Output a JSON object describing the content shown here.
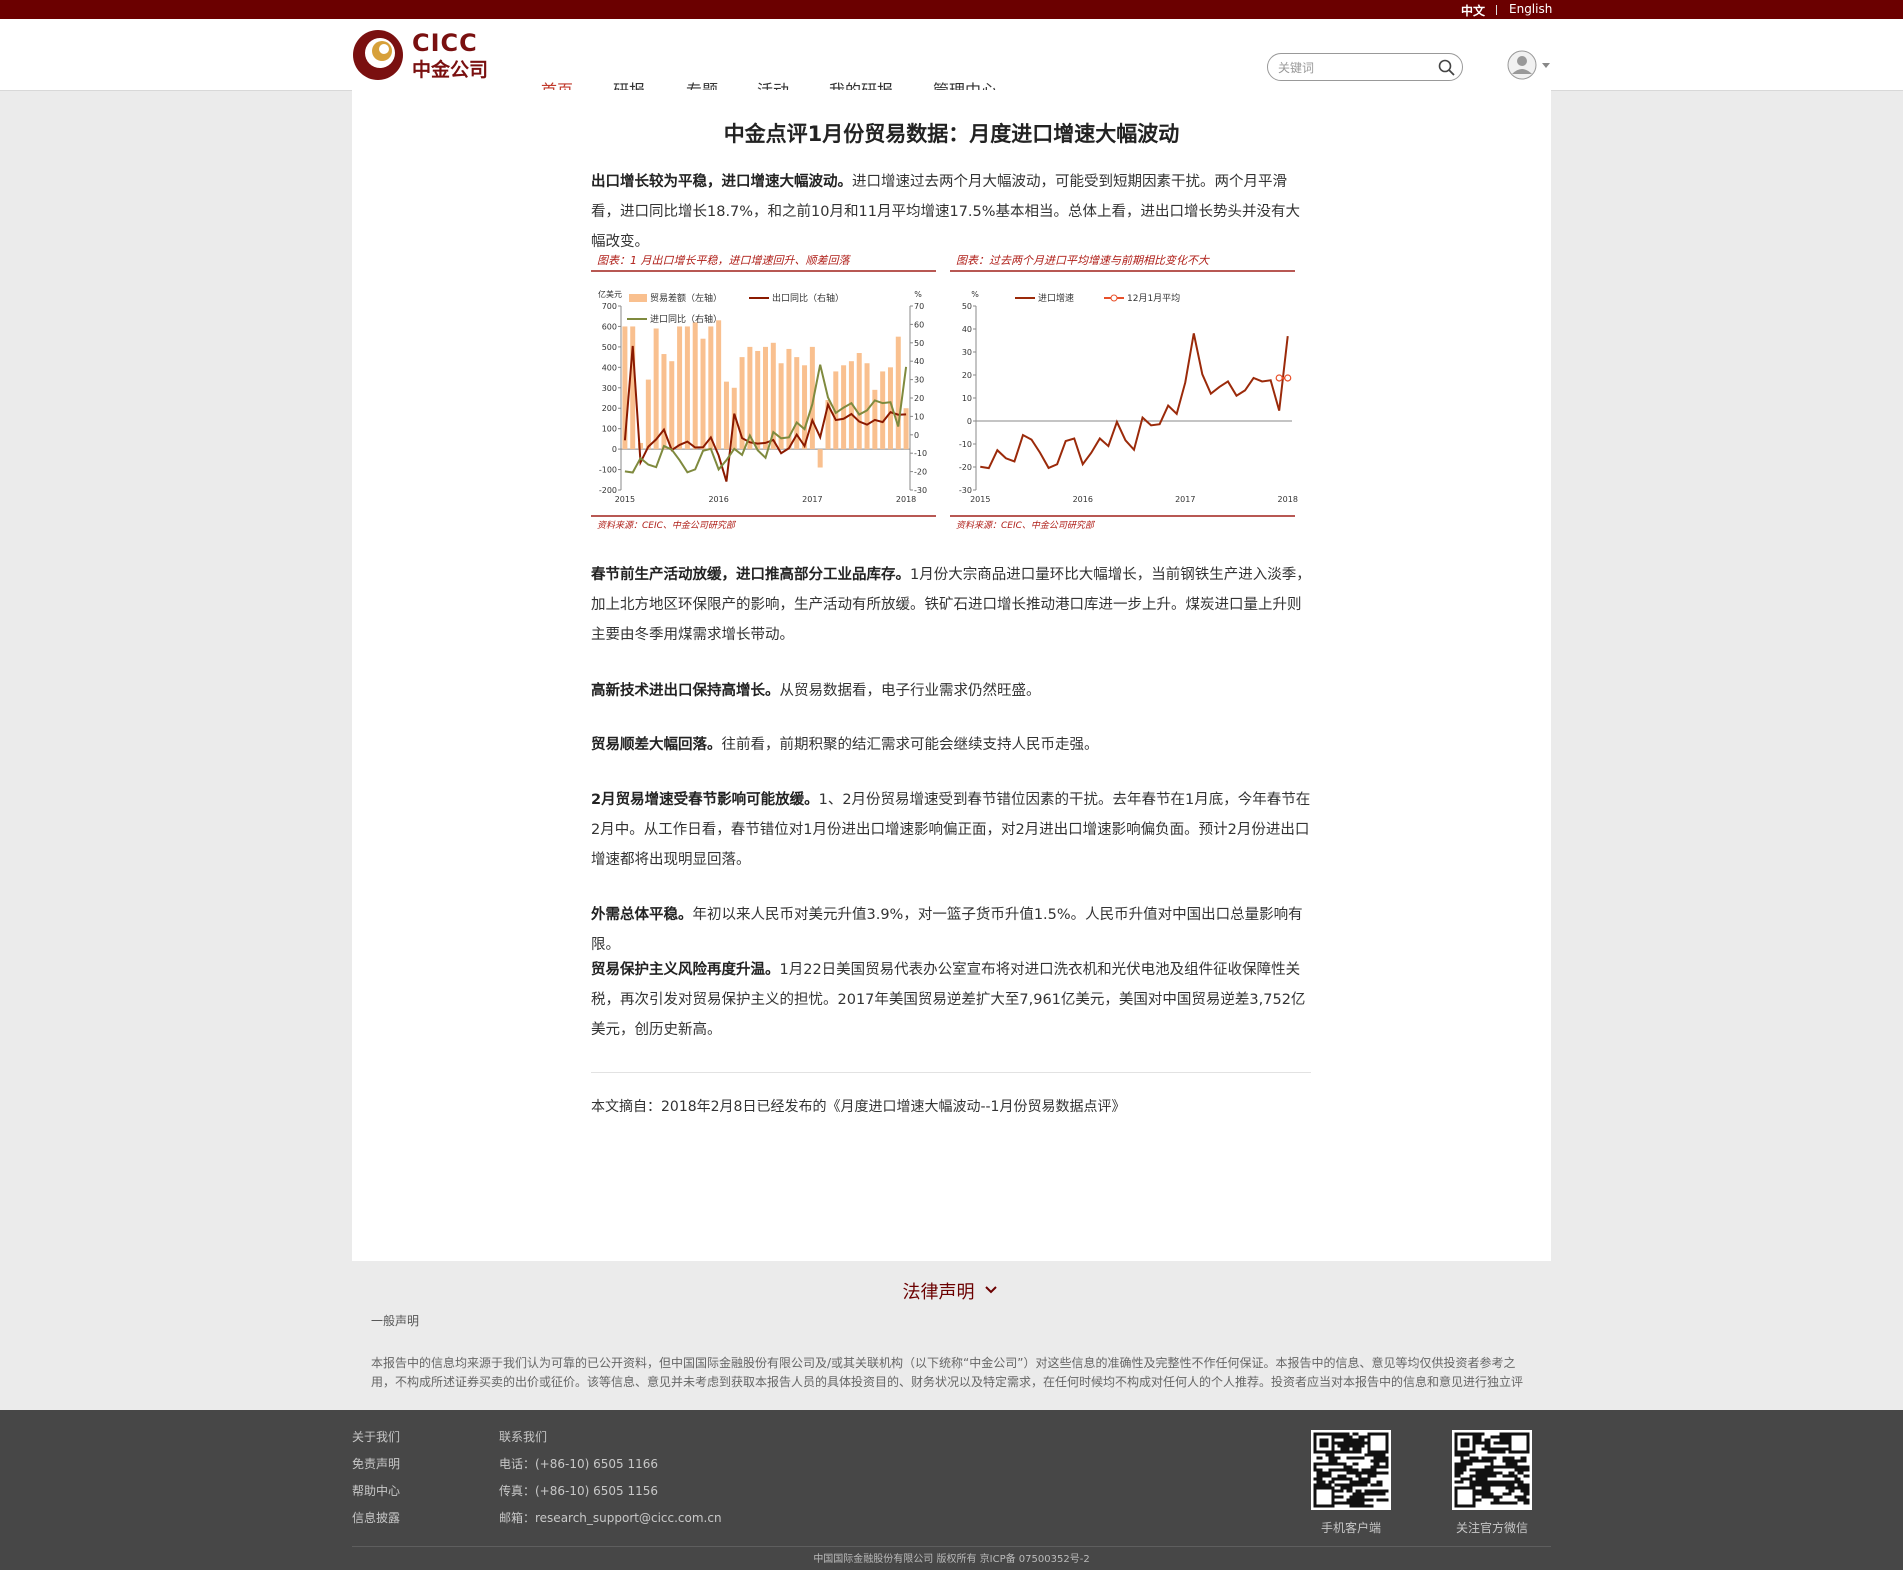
{
  "top_bar": {
    "languages": [
      "中文",
      "English"
    ]
  },
  "header": {
    "logo": {
      "en": "CICC",
      "cn": "中金公司"
    },
    "nav": [
      "首页",
      "研报",
      "专题",
      "活动",
      "我的研报",
      "管理中心"
    ],
    "search_placeholder": "关键词"
  },
  "article": {
    "title": "中金点评1月份贸易数据：月度进口增速大幅波动",
    "paragraphs": [
      {
        "lead": "出口增长较为平稳，进口增速大幅波动。",
        "text": "进口增速过去两个月大幅波动，可能受到短期因素干扰。两个月平滑看，进口同比增长18.7%，和之前10月和11月平均增速17.5%基本相当。总体上看，进出口增长势头并没有大幅改变。"
      },
      {
        "lead": "春节前生产活动放缓，进口推高部分工业品库存。",
        "text": "1月份大宗商品进口量环比大幅增长，当前钢铁生产进入淡季，加上北方地区环保限产的影响，生产活动有所放缓。铁矿石进口增长推动港口库进一步上升。煤炭进口量上升则主要由冬季用煤需求增长带动。"
      },
      {
        "lead": "高新技术进出口保持高增长。",
        "text": "从贸易数据看，电子行业需求仍然旺盛。"
      },
      {
        "lead": "贸易顺差大幅回落。",
        "text": "往前看，前期积聚的结汇需求可能会继续支持人民币走强。"
      },
      {
        "lead": "2月贸易增速受春节影响可能放缓。",
        "text": "1、2月份贸易增速受到春节错位因素的干扰。去年春节在1月底，今年春节在2月中。从工作日看，春节错位对1月份进出口增速影响偏正面，对2月进出口增速影响偏负面。预计2月份进出口增速都将出现明显回落。"
      },
      {
        "lead": "外需总体平稳。",
        "text": "年初以来人民币对美元升值3.9%，对一篮子货币升值1.5%。人民币升值对中国出口总量影响有限。"
      },
      {
        "lead": "贸易保护主义风险再度升温。",
        "text": "1月22日美国贸易代表办公室宣布将对进口洗衣机和光伏电池及组件征收保障性关税，再次引发对贸易保护主义的担忧。2017年美国贸易逆差扩大至7,961亿美元，美国对中国贸易逆差3,752亿美元，创历史新高。"
      }
    ],
    "charts": [
      {
        "type": "combo",
        "title": "图表：1 月出口增长平稳，进口增速回升、顺差回落",
        "source": "资料来源：CEIC、中金公司研究部",
        "y_unit": "亿美元",
        "y2_unit": "%",
        "categories": [
          "2015",
          null,
          null,
          null,
          null,
          null,
          null,
          null,
          null,
          null,
          null,
          null,
          "2016",
          null,
          null,
          null,
          null,
          null,
          null,
          null,
          null,
          null,
          null,
          null,
          "2017",
          null,
          null,
          null,
          null,
          null,
          null,
          null,
          null,
          null,
          null,
          null,
          "2018"
        ],
        "ylim": [
          -200,
          700
        ],
        "yticks": [
          700,
          600,
          500,
          400,
          300,
          200,
          100,
          0,
          -100,
          -200
        ],
        "y2lim": [
          -30,
          70
        ],
        "y2ticks": [
          70,
          60,
          50,
          40,
          30,
          20,
          10,
          0,
          -10,
          -20,
          -30
        ],
        "series": [
          {
            "name": "贸易差额（左轴）",
            "type": "bar",
            "color": "#f9c08f",
            "values": [
              600,
              600,
              30,
              340,
              590,
              465,
              430,
              600,
              600,
              620,
              540,
              600,
              630,
              330,
              300,
              450,
              500,
              480,
              500,
              520,
              420,
              490,
              450,
              410,
              500,
              -90,
              240,
              380,
              410,
              430,
              470,
              420,
              290,
              380,
              400,
              550,
              200
            ]
          },
          {
            "name": "出口同比（右轴）",
            "type": "line",
            "axis": "y2",
            "color": "#8b1a00",
            "values": [
              -3,
              48.3,
              -15,
              -6.4,
              -2.5,
              2.8,
              -8.3,
              -5.5,
              -3.7,
              -6.9,
              -6.8,
              -1.4,
              -11.2,
              -25.4,
              11.5,
              -1.8,
              -4.1,
              -4.8,
              -4.4,
              -2.8,
              -10,
              -7.3,
              0.1,
              -6.1,
              7.9,
              -1.3,
              16.4,
              8,
              8.7,
              11.3,
              7.2,
              5.5,
              8.1,
              6.9,
              12.3,
              10.9,
              11.1
            ]
          },
          {
            "name": "进口同比（右轴）",
            "type": "line",
            "axis": "y2",
            "color": "#7f8a3e",
            "values": [
              -19.9,
              -20.5,
              -12.7,
              -16.2,
              -17.6,
              -6.1,
              -8.1,
              -13.8,
              -20.4,
              -18.8,
              -8.7,
              -7.6,
              -18.8,
              -13.8,
              -7.6,
              -10.9,
              -0.4,
              -8.4,
              -12.5,
              1.5,
              -1.9,
              -1.4,
              6.7,
              3.1,
              16.7,
              38.1,
              20.3,
              11.9,
              14.8,
              17.2,
              11,
              13.3,
              18.7,
              17.2,
              17.7,
              4.5,
              36.9
            ]
          }
        ]
      },
      {
        "type": "line",
        "title": "图表：过去两个月进口平均增速与前期相比变化不大",
        "source": "资料来源：CEIC、中金公司研究部",
        "y_unit": "%",
        "categories": [
          "2015",
          null,
          null,
          null,
          null,
          null,
          null,
          null,
          null,
          null,
          null,
          null,
          "2016",
          null,
          null,
          null,
          null,
          null,
          null,
          null,
          null,
          null,
          null,
          null,
          "2017",
          null,
          null,
          null,
          null,
          null,
          null,
          null,
          null,
          null,
          null,
          null,
          "2018"
        ],
        "ylim": [
          -30,
          50
        ],
        "yticks": [
          50,
          40,
          30,
          20,
          10,
          0,
          -10,
          -20,
          -30
        ],
        "series": [
          {
            "name": "进口增速",
            "type": "line",
            "color": "#9b2a0a",
            "values": [
              -19.9,
              -20.5,
              -12.7,
              -16.2,
              -17.6,
              -6.1,
              -8.1,
              -13.8,
              -20.4,
              -18.8,
              -8.7,
              -7.6,
              -18.8,
              -13.8,
              -7.6,
              -10.9,
              -0.4,
              -8.4,
              -12.5,
              1.5,
              -1.9,
              -1.4,
              6.7,
              3.1,
              16.7,
              38.1,
              20.3,
              11.9,
              14.8,
              17.2,
              11,
              13.3,
              18.7,
              17.2,
              17.7,
              4.5,
              36.9
            ]
          },
          {
            "name": "12月1月平均",
            "type": "line",
            "marker": "circle",
            "color": "#e8502a",
            "values": [
              null,
              null,
              null,
              null,
              null,
              null,
              null,
              null,
              null,
              null,
              null,
              null,
              null,
              null,
              null,
              null,
              null,
              null,
              null,
              null,
              null,
              null,
              null,
              null,
              null,
              null,
              null,
              null,
              null,
              null,
              null,
              null,
              null,
              null,
              null,
              18.7,
              18.7
            ]
          }
        ]
      }
    ],
    "source_note": "本文摘自：2018年2月8日已经发布的《月度进口增速大幅波动--1月份贸易数据点评》"
  },
  "legal": {
    "title": "法律声明",
    "subtitle": "一般声明",
    "lines": [
      "本报告中的信息均来源于我们认为可靠的已公开资料，但中国国际金融股份有限公司及/或其关联机构（以下统称“中金公司”）对这些信息的准确性及完整性不作任何保证。本报告中的信息、意见等均仅供投资者参考之",
      "用，不构成所述证券买卖的出价或征价。该等信息、意见并未考虑到获取本报告人员的具体投资目的、财务状况以及特定需求，在任何时候均不构成对任何人的个人推荐。投资者应当对本报告中的信息和意见进行独立评"
    ]
  },
  "footer": {
    "links": [
      "关于我们",
      "免责声明",
      "帮助中心",
      "信息披露"
    ],
    "contact_title": "联系我们",
    "contact": [
      "电话：(+86-10) 6505 1166",
      "传真：(+86-10) 6505 1156",
      "邮箱：research_support@cicc.com.cn"
    ],
    "qr_labels": [
      "手机客户端",
      "关注官方微信"
    ],
    "copyright": "中国国际金融股份有限公司 版权所有 京ICP备 07500352号-2"
  }
}
